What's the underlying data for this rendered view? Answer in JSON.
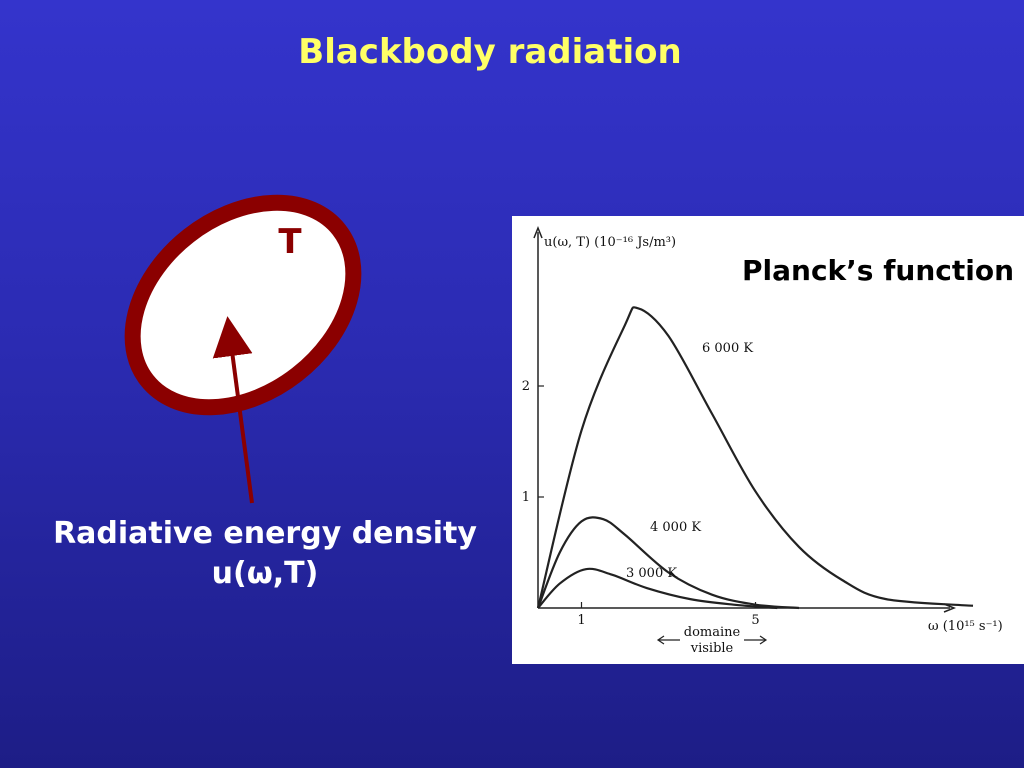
{
  "slide": {
    "title": "Blackbody radiation",
    "cavity_label": "T",
    "caption_line1": "Radiative energy density",
    "caption_line2": "u(ω,T)"
  },
  "chart_data": {
    "type": "line",
    "title": "Planck’s function",
    "ylabel": "u(ω, T) (10⁻¹⁶ Js/m³)",
    "xlabel": "ω (10¹⁵ s⁻¹)",
    "xlim": [
      0,
      10
    ],
    "ylim": [
      0,
      2.7
    ],
    "x_ticks": [
      1,
      5
    ],
    "y_ticks": [
      1,
      2
    ],
    "visible_band_label": [
      "domaine",
      "visible"
    ],
    "series": [
      {
        "name": "6 000 K",
        "x": [
          0,
          1,
          2,
          2.3,
          3,
          4,
          5,
          6,
          7,
          8,
          10
        ],
        "y": [
          0,
          1.6,
          2.55,
          2.7,
          2.45,
          1.75,
          1.05,
          0.55,
          0.25,
          0.08,
          0.02
        ]
      },
      {
        "name": "4 000 K",
        "x": [
          0,
          0.5,
          1.0,
          1.5,
          2.0,
          3.0,
          4.0,
          5.0,
          6.0
        ],
        "y": [
          0,
          0.5,
          0.78,
          0.8,
          0.66,
          0.32,
          0.12,
          0.03,
          0
        ]
      },
      {
        "name": "3 000 K",
        "x": [
          0,
          0.5,
          1.1,
          1.7,
          2.5,
          3.5,
          4.5,
          5.5
        ],
        "y": [
          0,
          0.22,
          0.35,
          0.3,
          0.18,
          0.08,
          0.03,
          0
        ]
      }
    ]
  }
}
